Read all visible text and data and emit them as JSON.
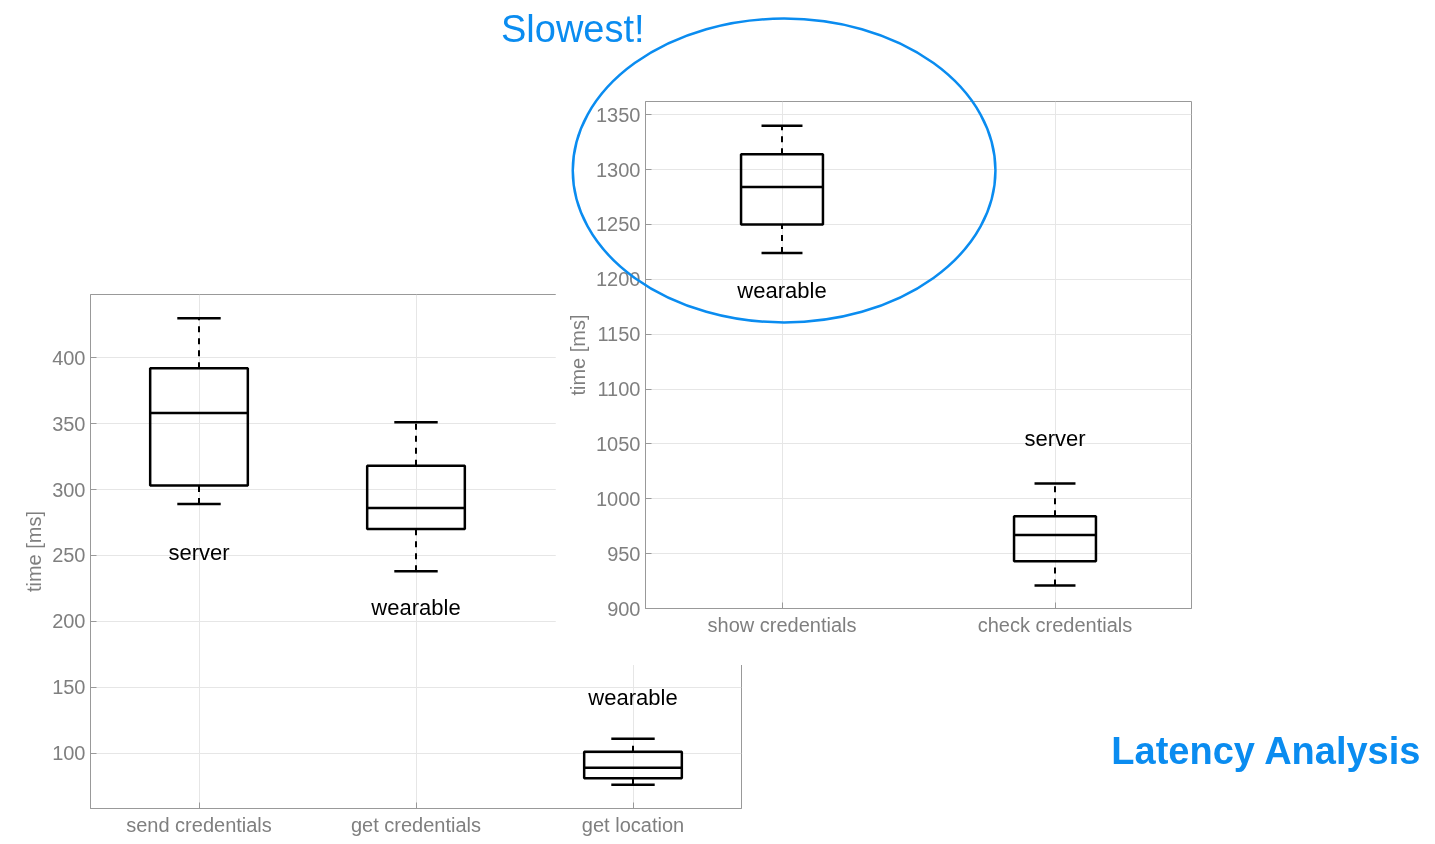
{
  "chart_data": [
    {
      "type": "box",
      "categories": [
        "show credentials",
        "check credentials"
      ],
      "boxes": [
        {
          "low": 1224,
          "q1": 1250,
          "median": 1284,
          "q3": 1314,
          "high": 1340
        },
        {
          "low": 921,
          "q1": 943,
          "median": 967,
          "q3": 984,
          "high": 1014
        }
      ],
      "ylim": [
        900,
        1362
      ],
      "yticks": [
        900,
        950,
        1000,
        1050,
        1100,
        1150,
        1200,
        1250,
        1300,
        1350
      ],
      "ylabel": "time [ms]",
      "grid": true,
      "annotations": [
        "wearable",
        "server",
        "Slowest!",
        "Latency Analysis"
      ]
    },
    {
      "type": "box",
      "categories": [
        "send credentials",
        "get credentials",
        "get location"
      ],
      "boxes": [
        {
          "low": 289,
          "q1": 303,
          "median": 358,
          "q3": 392,
          "high": 430
        },
        {
          "low": 238,
          "q1": 270,
          "median": 286,
          "q3": 318,
          "high": 351
        },
        {
          "low": 76,
          "q1": 81,
          "median": 89,
          "q3": 101,
          "high": 111
        }
      ],
      "ylim": [
        58,
        448
      ],
      "yticks": [
        100,
        150,
        200,
        250,
        300,
        350,
        400
      ],
      "ylabel": "time [ms]",
      "grid": true,
      "annotations": [
        "server",
        "wearable",
        "wearable"
      ]
    }
  ]
}
